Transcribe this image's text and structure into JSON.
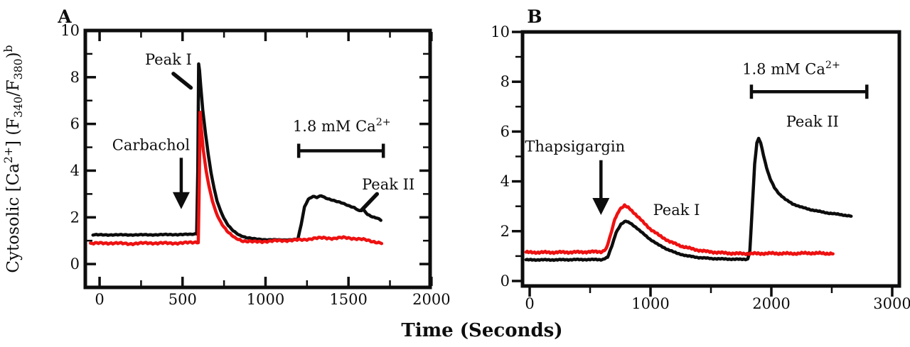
{
  "figure": {
    "x_axis_title": "Time (Seconds)",
    "background": "#ffffff",
    "colors": {
      "black_trace": "#0d0d0d",
      "red_trace": "#ee1111",
      "text": "#0d0d0d"
    },
    "y_axis_title_parts": [
      {
        "t": "Cytosolic [Ca"
      },
      {
        "sup": "2+"
      },
      {
        "t": "] (F"
      },
      {
        "sub": "340"
      },
      {
        "t": "/F"
      },
      {
        "sub": "380"
      },
      {
        "t": ")"
      },
      {
        "sup": "b"
      }
    ]
  },
  "chart_data": [
    {
      "id": "panel-a",
      "panel_label": "A",
      "type": "line",
      "xlabel": "Time (Seconds)",
      "ylabel": "Cytosolic [Ca2+] (F340/F380)b",
      "xlim": [
        -86,
        1992
      ],
      "ylim": [
        -1,
        10
      ],
      "x_major_ticks": [
        0,
        500,
        1000,
        1500,
        2000
      ],
      "x_minor_ticks": [
        250,
        750,
        1250,
        1750
      ],
      "y_major_ticks": [
        0,
        2,
        4,
        6,
        8,
        10
      ],
      "y_minor_ticks": [
        1,
        3,
        5,
        7,
        9
      ],
      "tick_style": "inside-mirrored",
      "series": [
        {
          "name": "black-trace",
          "color": "#0d0d0d",
          "jitter": 0.014,
          "points": [
            [
              -40,
              1.25
            ],
            [
              100,
              1.25
            ],
            [
              250,
              1.25
            ],
            [
              400,
              1.26
            ],
            [
              550,
              1.27
            ],
            [
              585,
              1.3
            ],
            [
              592,
              4.0
            ],
            [
              597,
              8.57
            ],
            [
              602,
              8.3
            ],
            [
              610,
              7.6
            ],
            [
              622,
              6.6
            ],
            [
              638,
              5.6
            ],
            [
              655,
              4.7
            ],
            [
              672,
              3.9
            ],
            [
              690,
              3.25
            ],
            [
              708,
              2.7
            ],
            [
              728,
              2.3
            ],
            [
              750,
              1.95
            ],
            [
              775,
              1.65
            ],
            [
              805,
              1.42
            ],
            [
              840,
              1.25
            ],
            [
              885,
              1.13
            ],
            [
              940,
              1.07
            ],
            [
              1010,
              1.04
            ],
            [
              1090,
              1.03
            ],
            [
              1160,
              1.04
            ],
            [
              1195,
              1.06
            ],
            [
              1215,
              1.7
            ],
            [
              1235,
              2.45
            ],
            [
              1258,
              2.78
            ],
            [
              1285,
              2.9
            ],
            [
              1310,
              2.85
            ],
            [
              1335,
              2.92
            ],
            [
              1365,
              2.82
            ],
            [
              1395,
              2.76
            ],
            [
              1430,
              2.68
            ],
            [
              1465,
              2.6
            ],
            [
              1500,
              2.5
            ],
            [
              1535,
              2.42
            ],
            [
              1565,
              2.28
            ],
            [
              1590,
              2.32
            ],
            [
              1615,
              2.12
            ],
            [
              1645,
              2.02
            ],
            [
              1672,
              1.98
            ],
            [
              1695,
              1.88
            ]
          ]
        },
        {
          "name": "red-trace",
          "color": "#ee1111",
          "jitter": 0.03,
          "points": [
            [
              -55,
              0.88
            ],
            [
              60,
              0.9
            ],
            [
              180,
              0.87
            ],
            [
              300,
              0.9
            ],
            [
              420,
              0.89
            ],
            [
              530,
              0.91
            ],
            [
              570,
              0.93
            ],
            [
              595,
              0.95
            ],
            [
              601,
              3.5
            ],
            [
              606,
              6.5
            ],
            [
              612,
              5.9
            ],
            [
              625,
              4.9
            ],
            [
              642,
              4.0
            ],
            [
              660,
              3.3
            ],
            [
              680,
              2.7
            ],
            [
              700,
              2.25
            ],
            [
              722,
              1.9
            ],
            [
              748,
              1.6
            ],
            [
              778,
              1.33
            ],
            [
              815,
              1.12
            ],
            [
              865,
              0.99
            ],
            [
              930,
              0.95
            ],
            [
              1000,
              0.97
            ],
            [
              1080,
              1.0
            ],
            [
              1160,
              1.02
            ],
            [
              1230,
              1.04
            ],
            [
              1290,
              1.1
            ],
            [
              1350,
              1.12
            ],
            [
              1410,
              1.1
            ],
            [
              1470,
              1.13
            ],
            [
              1530,
              1.1
            ],
            [
              1590,
              1.05
            ],
            [
              1645,
              0.97
            ],
            [
              1700,
              0.9
            ]
          ]
        }
      ],
      "annotations": [
        {
          "kind": "pointer-text",
          "text": "Peak I",
          "tx": 415,
          "ty": 8.75,
          "lx1": 445,
          "ly1": 8.15,
          "lx2": 550,
          "ly2": 7.55
        },
        {
          "kind": "arrow-text",
          "text": "Carbachol",
          "tx": 310,
          "ty": 5.1,
          "ax": 492,
          "ay1": 4.55,
          "ay2": 2.35
        },
        {
          "kind": "bracket",
          "label_parts": [
            {
              "t": "1.8 mM Ca"
            },
            {
              "sup": "2+"
            }
          ],
          "label_plain": "1.8 mM Ca2+",
          "x1": 1200,
          "x2": 1710,
          "y": 4.85,
          "lx": 1460,
          "ly": 5.9
        },
        {
          "kind": "pointer-text",
          "text": "Peak II",
          "tx": 1740,
          "ty": 3.4,
          "lx1": 1672,
          "ly1": 3.0,
          "lx2": 1578,
          "ly2": 2.3
        }
      ]
    },
    {
      "id": "panel-b",
      "panel_label": "B",
      "type": "line",
      "xlabel": "Time (Seconds)",
      "ylabel": "Cytosolic [Ca2+] (F340/F380)b",
      "xlim": [
        -59,
        3059
      ],
      "ylim": [
        -0.2,
        10
      ],
      "x_major_ticks": [
        0,
        1000,
        2000,
        3000
      ],
      "x_minor_ticks": [
        500,
        1500,
        2500
      ],
      "y_major_ticks": [
        0,
        2,
        4,
        6,
        8,
        10
      ],
      "y_minor_ticks": [
        1,
        3,
        5,
        7,
        9
      ],
      "tick_style": "outside",
      "series": [
        {
          "name": "black-trace",
          "color": "#0d0d0d",
          "jitter": 0.014,
          "points": [
            [
              -30,
              0.85
            ],
            [
              200,
              0.85
            ],
            [
              400,
              0.86
            ],
            [
              600,
              0.86
            ],
            [
              645,
              0.95
            ],
            [
              680,
              1.4
            ],
            [
              715,
              1.95
            ],
            [
              755,
              2.28
            ],
            [
              795,
              2.4
            ],
            [
              835,
              2.32
            ],
            [
              880,
              2.15
            ],
            [
              935,
              1.92
            ],
            [
              995,
              1.68
            ],
            [
              1060,
              1.47
            ],
            [
              1135,
              1.28
            ],
            [
              1215,
              1.12
            ],
            [
              1300,
              1.01
            ],
            [
              1400,
              0.94
            ],
            [
              1510,
              0.9
            ],
            [
              1630,
              0.88
            ],
            [
              1750,
              0.87
            ],
            [
              1805,
              0.88
            ],
            [
              1822,
              1.2
            ],
            [
              1845,
              3.2
            ],
            [
              1862,
              4.7
            ],
            [
              1880,
              5.55
            ],
            [
              1895,
              5.72
            ],
            [
              1912,
              5.55
            ],
            [
              1935,
              5.05
            ],
            [
              1960,
              4.55
            ],
            [
              1990,
              4.1
            ],
            [
              2025,
              3.75
            ],
            [
              2065,
              3.5
            ],
            [
              2115,
              3.28
            ],
            [
              2175,
              3.1
            ],
            [
              2245,
              2.97
            ],
            [
              2320,
              2.87
            ],
            [
              2400,
              2.79
            ],
            [
              2480,
              2.72
            ],
            [
              2570,
              2.67
            ],
            [
              2660,
              2.6
            ]
          ]
        },
        {
          "name": "red-trace",
          "color": "#ee1111",
          "jitter": 0.028,
          "points": [
            [
              -30,
              1.15
            ],
            [
              200,
              1.15
            ],
            [
              400,
              1.16
            ],
            [
              600,
              1.18
            ],
            [
              635,
              1.3
            ],
            [
              670,
              1.85
            ],
            [
              705,
              2.5
            ],
            [
              745,
              2.88
            ],
            [
              785,
              3.02
            ],
            [
              825,
              2.92
            ],
            [
              875,
              2.68
            ],
            [
              935,
              2.38
            ],
            [
              1000,
              2.08
            ],
            [
              1075,
              1.82
            ],
            [
              1160,
              1.58
            ],
            [
              1255,
              1.4
            ],
            [
              1360,
              1.27
            ],
            [
              1470,
              1.18
            ],
            [
              1590,
              1.13
            ],
            [
              1720,
              1.1
            ],
            [
              1860,
              1.1
            ],
            [
              2010,
              1.11
            ],
            [
              2160,
              1.1
            ],
            [
              2320,
              1.12
            ],
            [
              2510,
              1.1
            ]
          ]
        }
      ],
      "annotations": [
        {
          "kind": "arrow-text",
          "text": "Thapsigargin",
          "tx": 375,
          "ty": 5.4,
          "ax": 590,
          "ay1": 4.85,
          "ay2": 2.65
        },
        {
          "kind": "text",
          "text": "Peak I",
          "tx": 1215,
          "ty": 2.85
        },
        {
          "kind": "bracket",
          "label_parts": [
            {
              "t": "1.8 mM Ca"
            },
            {
              "sup": "2+"
            }
          ],
          "label_plain": "1.8 mM Ca2+",
          "x1": 1835,
          "x2": 2790,
          "y": 7.6,
          "lx": 2165,
          "ly": 8.5
        },
        {
          "kind": "text",
          "text": "Peak II",
          "tx": 2340,
          "ty": 6.4
        }
      ]
    }
  ]
}
